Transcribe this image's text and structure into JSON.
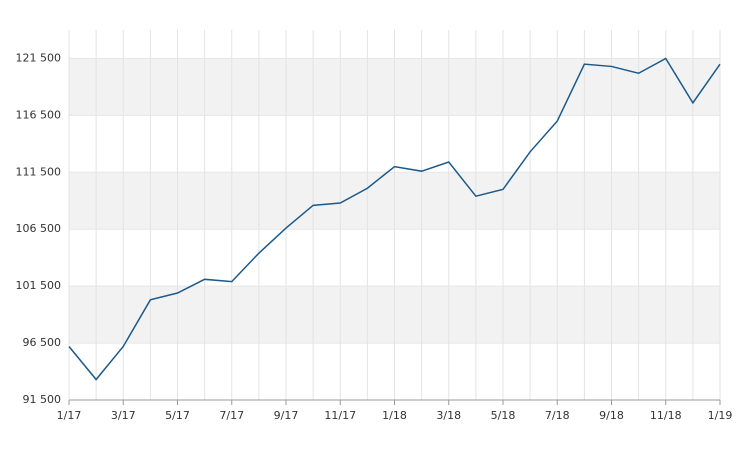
{
  "chart_data": {
    "type": "line",
    "categories": [
      "1/17",
      null,
      "3/17",
      null,
      "5/17",
      null,
      "7/17",
      null,
      "9/17",
      null,
      "11/17",
      null,
      "1/18",
      null,
      "3/18",
      null,
      "5/18",
      null,
      "7/18",
      null,
      "9/18",
      null,
      "11/18",
      null,
      "1/19"
    ],
    "series": [
      {
        "color": "#1b5a8c",
        "values": [
          96200,
          93300,
          96200,
          100300,
          100900,
          102100,
          101900,
          104400,
          106600,
          108600,
          108800,
          110100,
          112000,
          111600,
          112400,
          109400,
          110000,
          113300,
          116000,
          121000,
          120800,
          120200,
          121500,
          117600,
          121000
        ]
      }
    ],
    "ylim": [
      91500,
      124000
    ],
    "yticks": [
      {
        "value": 91500,
        "label": "91 500"
      },
      {
        "value": 96500,
        "label": "96 500"
      },
      {
        "value": 101500,
        "label": "101 500"
      },
      {
        "value": 106500,
        "label": "106 500"
      },
      {
        "value": 111500,
        "label": "111 500"
      },
      {
        "value": 116500,
        "label": "116 500"
      },
      {
        "value": 121500,
        "label": "121 500"
      }
    ],
    "grid": true,
    "bands": true
  }
}
